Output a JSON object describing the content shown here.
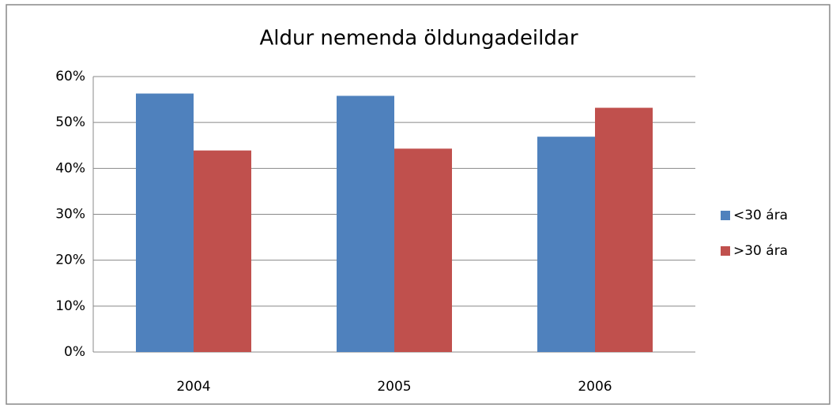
{
  "chart_data": {
    "type": "bar",
    "title": "Aldur nemenda öldungadeildar",
    "categories": [
      "2004",
      "2005",
      "2006"
    ],
    "series": [
      {
        "name": "<30 ára",
        "color": "#4f81bd",
        "values": [
          56.3,
          55.8,
          46.9
        ]
      },
      {
        "name": ">30 ára",
        "color": "#c0504d",
        "values": [
          43.9,
          44.3,
          53.2
        ]
      }
    ],
    "ylim": [
      0,
      60
    ],
    "yticks": [
      {
        "value": 0,
        "label": "0%"
      },
      {
        "value": 10,
        "label": "10%"
      },
      {
        "value": 20,
        "label": "20%"
      },
      {
        "value": 30,
        "label": "30%"
      },
      {
        "value": 40,
        "label": "40%"
      },
      {
        "value": 50,
        "label": "50%"
      },
      {
        "value": 60,
        "label": "60%"
      }
    ],
    "grid": true,
    "legend": "right"
  }
}
